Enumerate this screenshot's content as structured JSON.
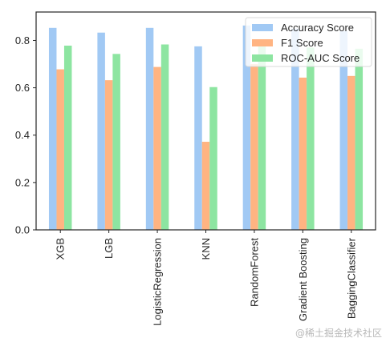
{
  "chart_data": {
    "type": "bar",
    "categories": [
      "XGB",
      "LGB",
      "LogisticRegression",
      "KNN",
      "RandomForest",
      "Gradient Boosting",
      "BaggingClassifier"
    ],
    "series": [
      {
        "name": "Accuracy Score",
        "color": "#a1c9f4",
        "values": [
          0.853,
          0.833,
          0.853,
          0.775,
          0.863,
          0.85,
          0.84
        ]
      },
      {
        "name": "F1 Score",
        "color": "#ffb482",
        "values": [
          0.678,
          0.632,
          0.688,
          0.372,
          0.7,
          0.643,
          0.65
        ]
      },
      {
        "name": "ROC-AUC Score",
        "color": "#8de5a1",
        "values": [
          0.778,
          0.743,
          0.783,
          0.603,
          0.79,
          0.77,
          0.765
        ]
      }
    ],
    "ylim": [
      0,
      0.92
    ],
    "yticks": [
      0.0,
      0.2,
      0.4,
      0.6,
      0.8
    ],
    "ytick_labels": [
      "0.0",
      "0.2",
      "0.4",
      "0.6",
      "0.8"
    ],
    "legend_position": "top-right",
    "grid": false
  },
  "watermark": "@稀土掘金技术社区"
}
